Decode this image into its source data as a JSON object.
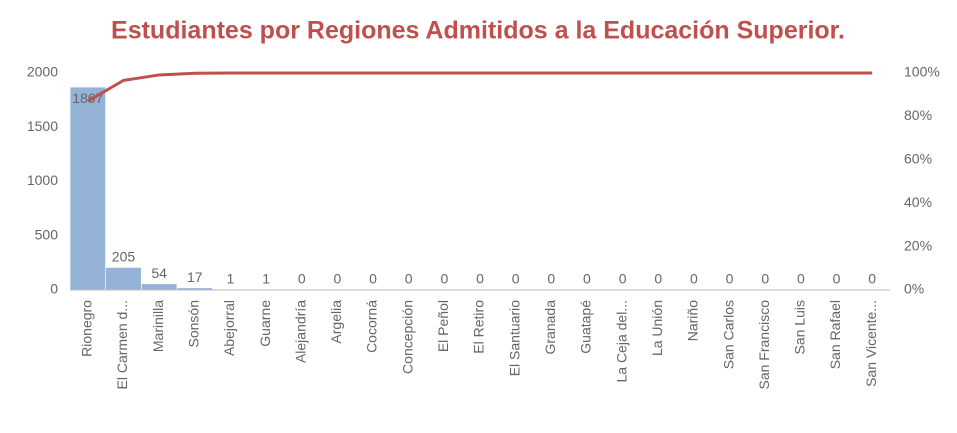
{
  "chart_data": {
    "type": "pareto",
    "title": "Estudiantes por Regiones Admitidos a la Educación Superior.",
    "categories": [
      "Rionegro",
      "El Carmen d...",
      "Marinilla",
      "Sonsón",
      "Abejorral",
      "Guarne",
      "Alejandría",
      "Argelia",
      "Cocorná",
      "Concepción",
      "El Peñol",
      "El Retiro",
      "El Santuario",
      "Granada",
      "Guatapé",
      "La Ceja del...",
      "La Unión",
      "Nariño",
      "San Carlos",
      "San Francisco",
      "San Luis",
      "San Rafael",
      "San Vicente..."
    ],
    "series": [
      {
        "color": "#95b3d7",
        "values": [
          1867,
          205,
          54,
          17,
          1,
          1,
          0,
          0,
          0,
          0,
          0,
          0,
          0,
          0,
          0,
          0,
          0,
          0,
          0,
          0,
          0,
          0,
          0
        ]
      },
      {
        "color": "#c0504d",
        "axis": "y2",
        "values": [
          87,
          96.6,
          99.1,
          99.9,
          100,
          100,
          100,
          100,
          100,
          100,
          100,
          100,
          100,
          100,
          100,
          100,
          100,
          100,
          100,
          100,
          100,
          100,
          100
        ]
      }
    ],
    "ylim": [
      0,
      2000
    ],
    "yticks": [
      0,
      500,
      1000,
      1500,
      2000
    ],
    "y2lim": [
      0,
      100
    ],
    "y2ticks": [
      {
        "value": 0,
        "label": "0%"
      },
      {
        "value": 20,
        "label": "20%"
      },
      {
        "value": 40,
        "label": "40%"
      },
      {
        "value": 60,
        "label": "60%"
      },
      {
        "value": 80,
        "label": "80%"
      },
      {
        "value": 100,
        "label": "100%"
      }
    ],
    "grid": false
  }
}
